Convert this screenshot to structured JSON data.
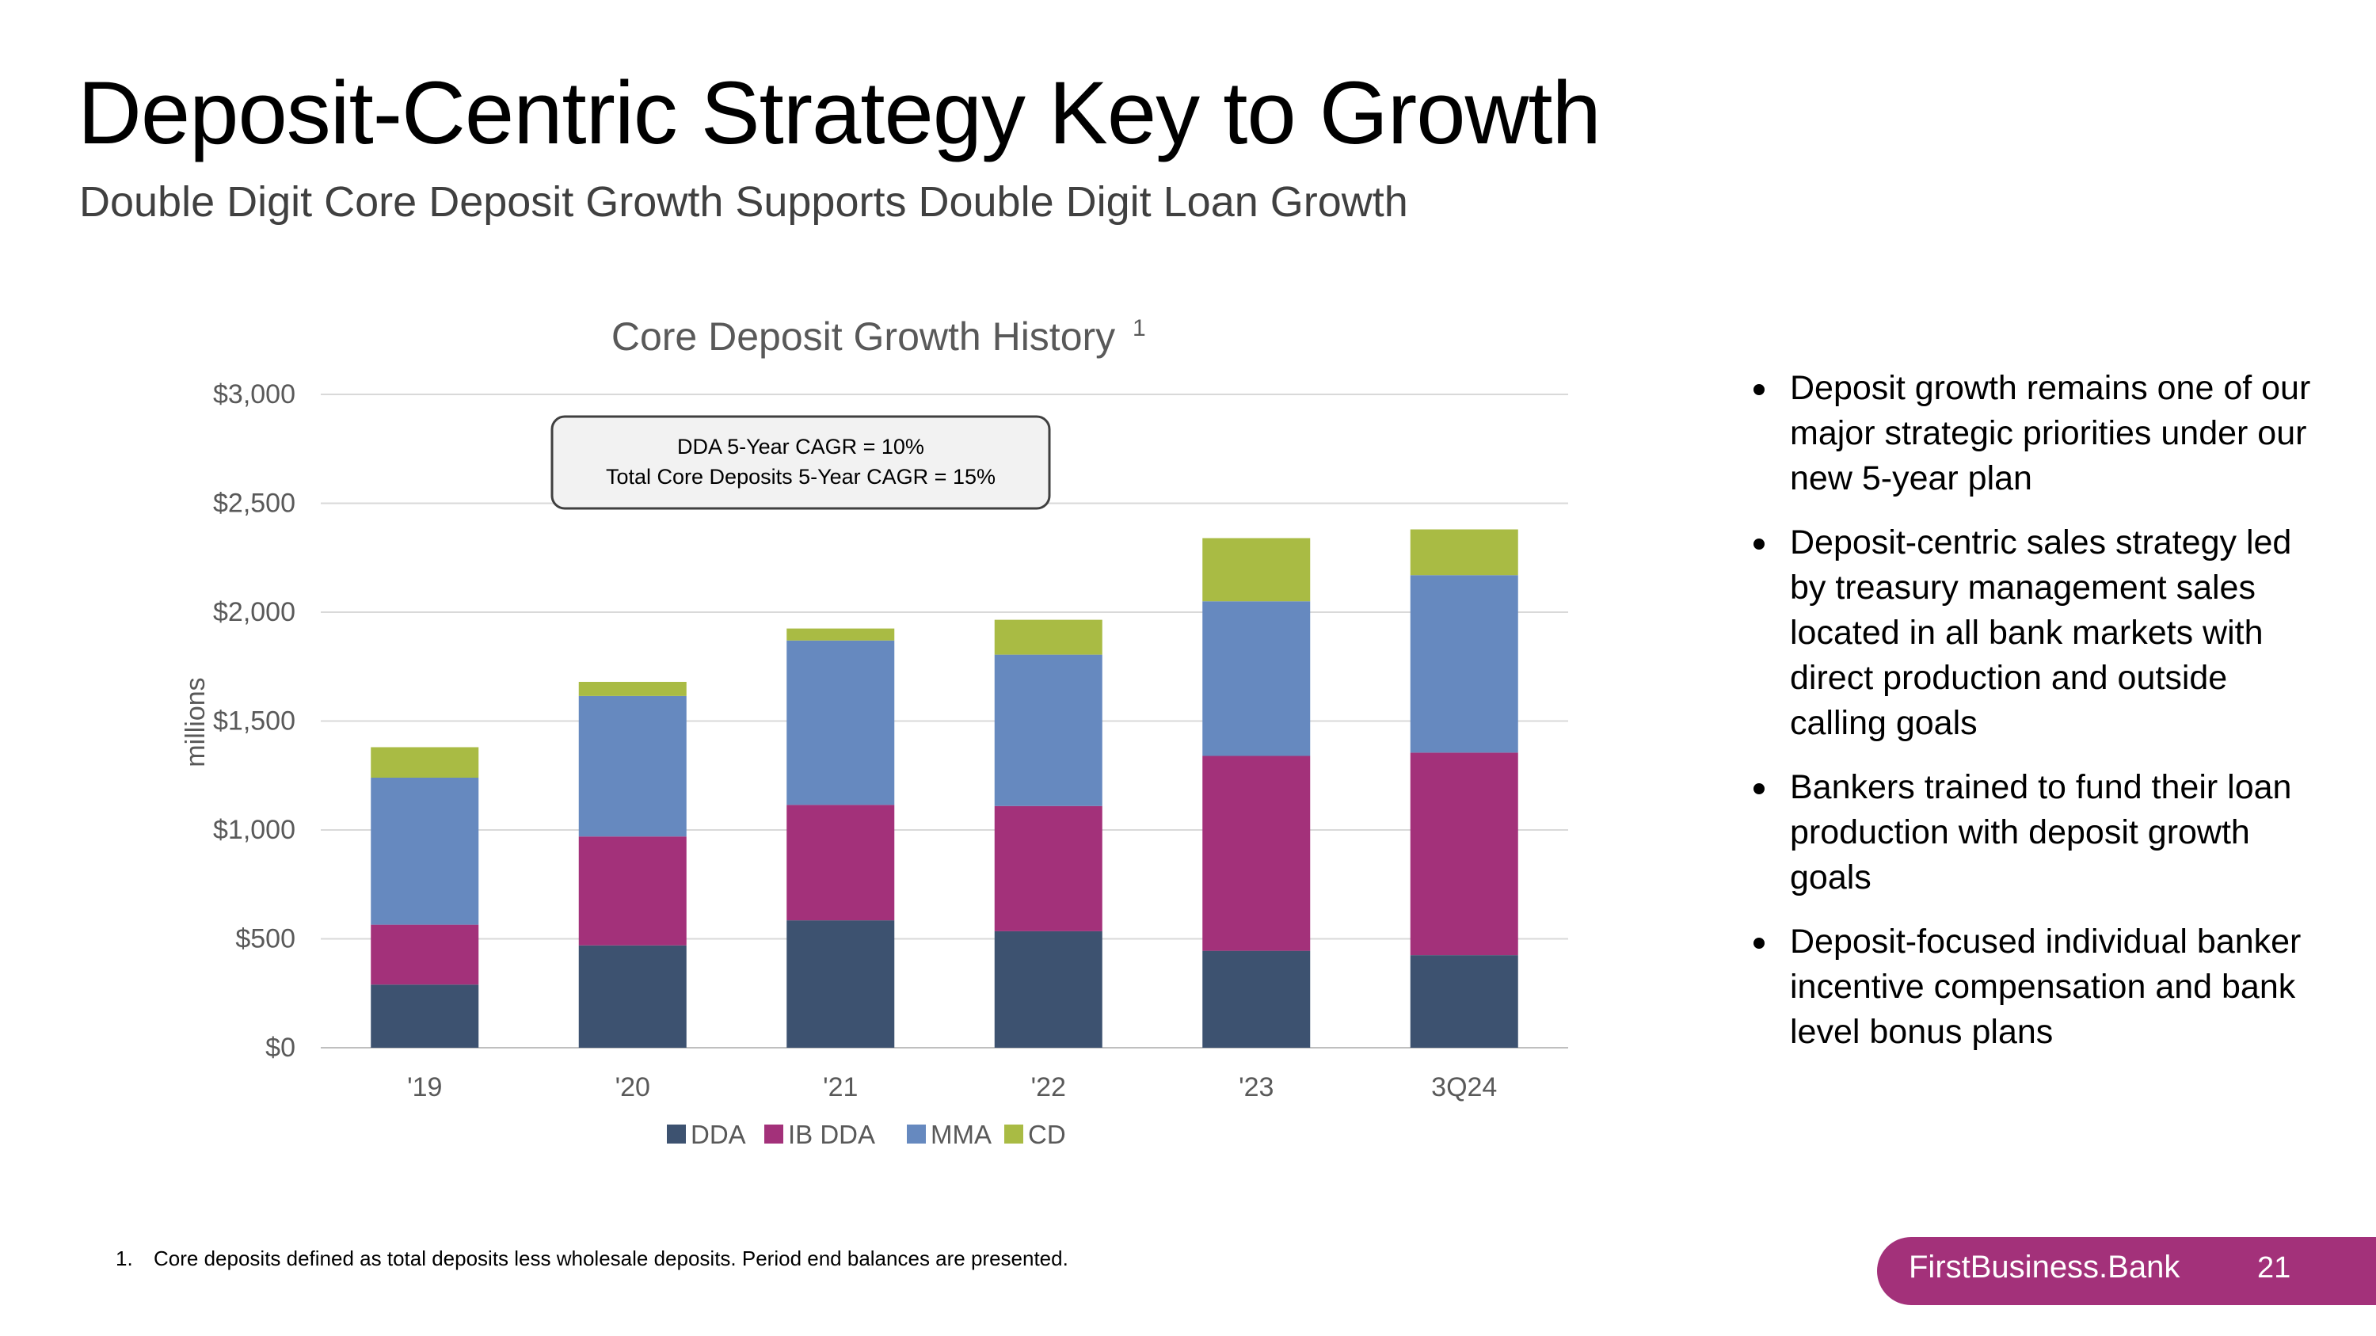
{
  "slide": {
    "title": "Deposit-Centric Strategy Key to Growth",
    "subtitle": "Double Digit Core Deposit Growth Supports Double Digit Loan Growth",
    "bullets": [
      "Deposit growth remains one of our major strategic priorities under our new 5-year plan",
      "Deposit-centric sales strategy led by treasury management sales located in all bank markets with direct production and outside calling goals",
      "Bankers trained to fund their loan production with deposit growth goals",
      "Deposit-focused individual banker incentive compensation and bank level bonus plans"
    ],
    "footnote": {
      "number": "1.",
      "text": "Core deposits defined as total deposits less wholesale deposits. Period end balances are presented."
    },
    "brand": "FirstBusiness.Bank",
    "page_number": "21"
  },
  "chart_data": {
    "type": "bar",
    "stacked": true,
    "title": "Core Deposit Growth History",
    "title_superscript": "1",
    "ylabel": "millions",
    "xlabel": "",
    "ylim": [
      0,
      3000
    ],
    "y_ticks": [
      "$0",
      "$500",
      "$1,000",
      "$1,500",
      "$2,000",
      "$2,500",
      "$3,000"
    ],
    "categories": [
      "'19",
      "'20",
      "'21",
      "'22",
      "'23",
      "3Q24"
    ],
    "series": [
      {
        "name": "DDA",
        "color": "#3d5270",
        "values": [
          290,
          470,
          585,
          535,
          445,
          425
        ]
      },
      {
        "name": "IB DDA",
        "color": "#a3317a",
        "values": [
          275,
          500,
          530,
          575,
          895,
          930
        ]
      },
      {
        "name": "MMA",
        "color": "#6689bf",
        "values": [
          675,
          645,
          755,
          695,
          710,
          815
        ]
      },
      {
        "name": "CD",
        "color": "#a9bb44",
        "values": [
          140,
          65,
          55,
          160,
          290,
          210
        ]
      }
    ],
    "annotation": [
      "DDA 5-Year CAGR = 10%",
      "Total Core Deposits 5-Year CAGR = 15%"
    ],
    "grid": true,
    "legend_position": "bottom"
  }
}
